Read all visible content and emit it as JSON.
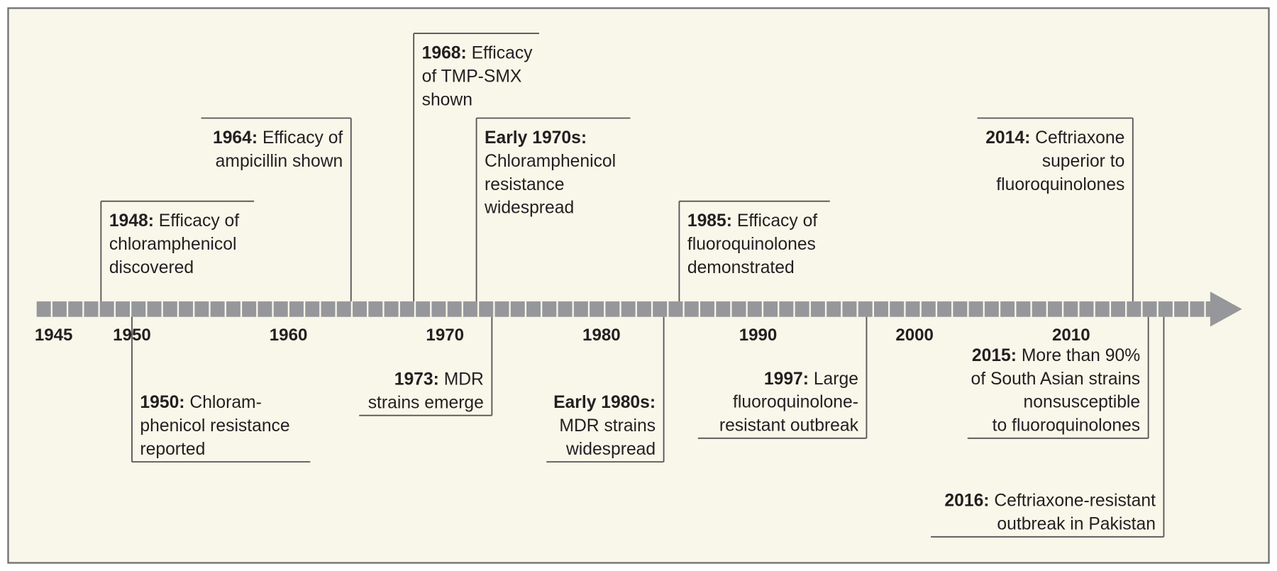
{
  "colors": {
    "background": "#f9f7ea",
    "border": "#6f6f6f",
    "bar": "#96979b",
    "leader": "#555555",
    "text": "#231f20"
  },
  "axis": {
    "start_year": 1945,
    "end_year": 2019,
    "tick_labels": [
      "1945",
      "1950",
      "1960",
      "1970",
      "1980",
      "1990",
      "2000",
      "2010"
    ]
  },
  "events": [
    {
      "year": 1948,
      "side": "above",
      "level": 3,
      "align": "left",
      "label": "1948:",
      "lines": [
        " Efficacy of",
        "chloramphenicol",
        "discovered"
      ]
    },
    {
      "year": 1964,
      "side": "above",
      "level": 2,
      "align": "right",
      "label": "1964:",
      "lines": [
        " Efficacy of",
        "ampicillin shown"
      ]
    },
    {
      "year": 1968,
      "side": "above",
      "level": 1,
      "align": "left",
      "label": "1968:",
      "lines": [
        " Efficacy",
        "of TMP-SMX",
        "shown"
      ]
    },
    {
      "year": 1972,
      "side": "above",
      "level": 2,
      "align": "left",
      "label": "Early 1970s:",
      "lines": [
        "",
        "Chloramphenicol",
        "resistance",
        "widespread"
      ]
    },
    {
      "year": 1985,
      "side": "above",
      "level": 3,
      "align": "left",
      "label": "1985:",
      "lines": [
        " Efficacy of",
        "fluoroquinolones",
        "demonstrated"
      ]
    },
    {
      "year": 2014,
      "side": "above",
      "level": 2,
      "align": "right",
      "label": "2014:",
      "lines": [
        " Ceftriaxone",
        "superior to",
        "fluoroquinolones"
      ]
    },
    {
      "year": 1950,
      "side": "below",
      "level": 2,
      "align": "left",
      "label": "1950:",
      "lines": [
        " Chloram-",
        "phenicol resistance",
        "reported"
      ]
    },
    {
      "year": 1973,
      "side": "below",
      "level": 1,
      "align": "right",
      "label": "1973:",
      "lines": [
        " MDR",
        "strains emerge"
      ]
    },
    {
      "year": 1983,
      "side": "below",
      "level": 2,
      "align": "right",
      "label": "Early 1980s:",
      "lines": [
        "",
        "MDR strains",
        "widespread"
      ]
    },
    {
      "year": 1997,
      "side": "below",
      "level": 1,
      "align": "right",
      "label": "1997:",
      "lines": [
        " Large",
        "fluoroquinolone-",
        "resistant outbreak"
      ]
    },
    {
      "year": 2015,
      "side": "below",
      "level": 1,
      "align": "right",
      "label": "2015:",
      "lines": [
        " More than 90%",
        "of South Asian strains",
        "nonsusceptible",
        "to fluoroquinolones"
      ]
    },
    {
      "year": 2016,
      "side": "below",
      "level": 3,
      "align": "right",
      "label": "2016:",
      "lines": [
        " Ceftriaxone-resistant",
        "outbreak in Pakistan"
      ]
    }
  ]
}
